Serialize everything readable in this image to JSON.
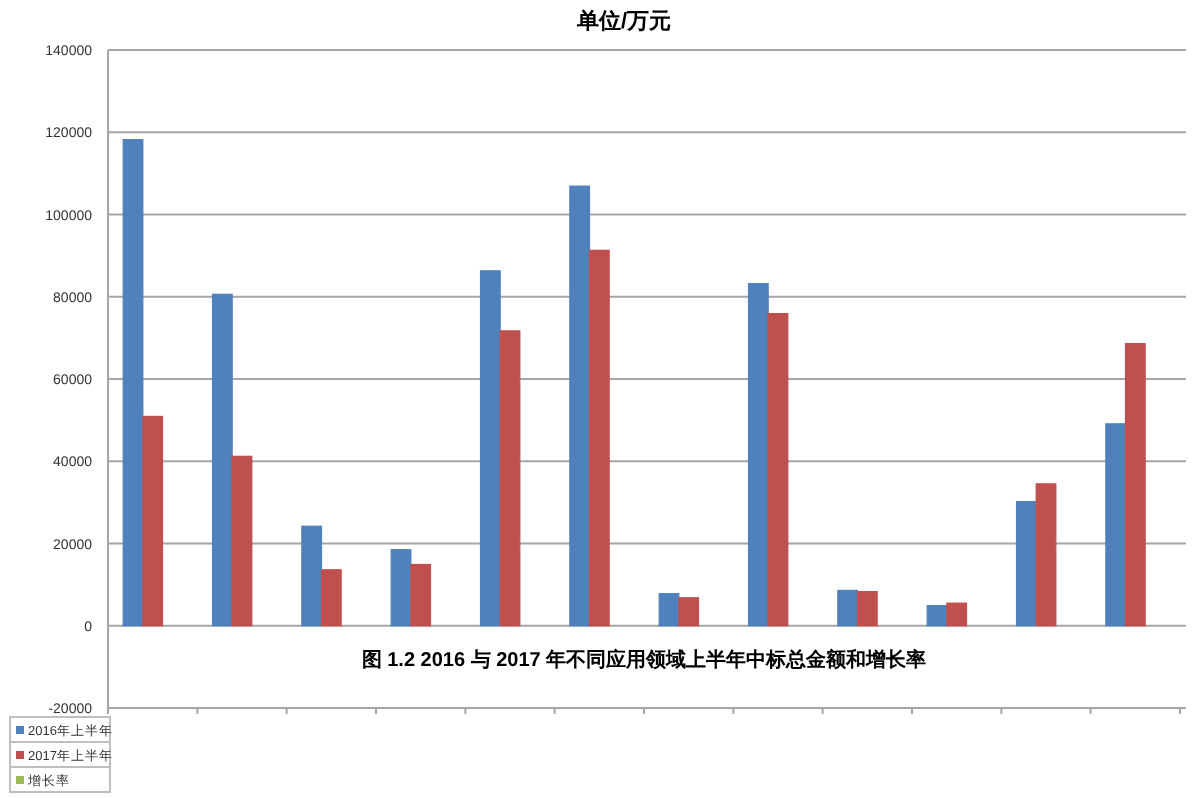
{
  "chart_data": {
    "type": "bar",
    "title": "单位/万元",
    "annotations": [
      "图 1.2 2016 与 2017 年不同应用领域上半年中标总金额和增长率"
    ],
    "categories": [
      null,
      null,
      null,
      null,
      null,
      null,
      null,
      null,
      null,
      null,
      null,
      null
    ],
    "series": [
      {
        "name": "2016年上半年",
        "color": "#4f81bd",
        "values": [
          118200,
          80600,
          24200,
          18500,
          86300,
          106900,
          7800,
          83200,
          8600,
          4900,
          30200,
          49100
        ]
      },
      {
        "name": "2017年上半年",
        "color": "#c0504d",
        "values": [
          50900,
          41200,
          13600,
          14900,
          71700,
          91300,
          6800,
          75900,
          8300,
          5500,
          34500,
          68600
        ]
      },
      {
        "name": "增长率",
        "color": "#9bbb59",
        "values": [
          0,
          0,
          0,
          0,
          0,
          0,
          0,
          0,
          0,
          0,
          0,
          0
        ]
      }
    ],
    "ylim": [
      -20000,
      140000
    ],
    "yticks": [
      -20000,
      0,
      20000,
      40000,
      60000,
      80000,
      100000,
      120000,
      140000
    ],
    "grid": "y",
    "legend": "bottom left"
  }
}
